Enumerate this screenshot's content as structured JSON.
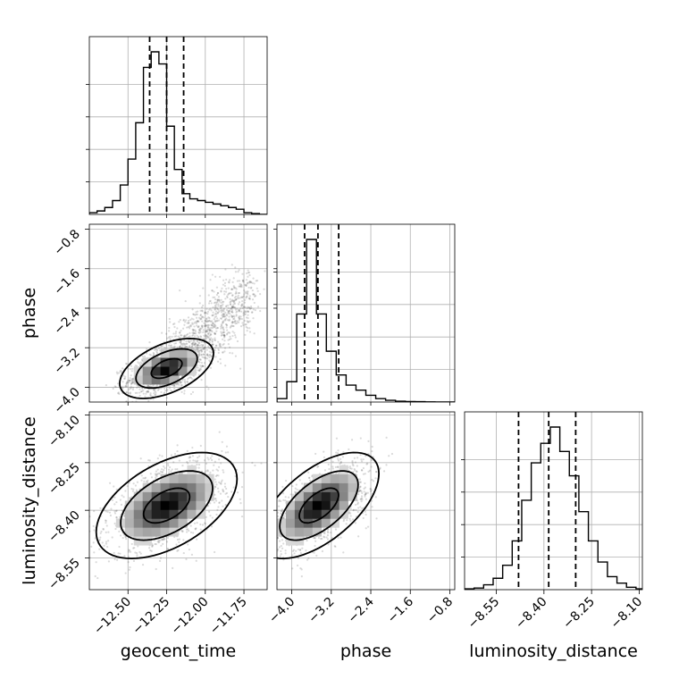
{
  "chart_data": {
    "type": "corner",
    "parameters": [
      "geocent_time",
      "phase",
      "luminosity_distance"
    ],
    "axis_ranges": {
      "geocent_time": [
        -12.75,
        -11.6
      ],
      "phase": [
        -4.3,
        -0.7
      ],
      "luminosity_distance": [
        -8.65,
        -8.09
      ]
    },
    "ticks": {
      "geocent_time": [
        -12.5,
        -12.25,
        -12.0,
        -11.75
      ],
      "phase": [
        -4.0,
        -3.2,
        -2.4,
        -1.6,
        -0.8
      ],
      "luminosity_distance": [
        -8.55,
        -8.4,
        -8.25,
        -8.1
      ]
    },
    "tick_labels": {
      "geocent_time": [
        "−12.50",
        "−12.25",
        "−12.00",
        "−11.75"
      ],
      "phase": [
        "−4.0",
        "−3.2",
        "−2.4",
        "−1.6",
        "−0.8"
      ],
      "luminosity_distance": [
        "−8.55",
        "−8.40",
        "−8.25",
        "−8.10"
      ]
    },
    "quantiles": {
      "geocent_time": [
        -12.36,
        -12.25,
        -12.14
      ],
      "phase": [
        -3.74,
        -3.47,
        -3.05
      ],
      "luminosity_distance": [
        -8.48,
        -8.385,
        -8.3
      ]
    },
    "histograms": {
      "geocent_time": {
        "edges": [
          -12.75,
          -12.7,
          -12.65,
          -12.6,
          -12.55,
          -12.5,
          -12.45,
          -12.4,
          -12.35,
          -12.3,
          -12.25,
          -12.2,
          -12.15,
          -12.1,
          -12.05,
          -12.0,
          -11.95,
          -11.9,
          -11.85,
          -11.8,
          -11.75,
          -11.7,
          -11.65,
          -11.6
        ],
        "counts": [
          0.01,
          0.02,
          0.04,
          0.08,
          0.17,
          0.32,
          0.53,
          0.85,
          0.94,
          0.87,
          0.51,
          0.26,
          0.12,
          0.09,
          0.08,
          0.07,
          0.06,
          0.05,
          0.04,
          0.03,
          0.01,
          0.005,
          0.0
        ]
      },
      "phase": {
        "edges": [
          -4.3,
          -4.1,
          -3.9,
          -3.7,
          -3.5,
          -3.3,
          -3.1,
          -2.9,
          -2.7,
          -2.5,
          -2.3,
          -2.1,
          -1.9,
          -1.7,
          -1.5,
          -1.3,
          -1.1,
          -0.9,
          -0.7
        ],
        "counts": [
          0.02,
          0.12,
          0.52,
          0.96,
          0.52,
          0.3,
          0.16,
          0.1,
          0.07,
          0.04,
          0.02,
          0.01,
          0.005,
          0.003,
          0.002,
          0.001,
          0.0,
          0.0
        ]
      },
      "luminosity_distance": {
        "edges": [
          -8.65,
          -8.62,
          -8.59,
          -8.56,
          -8.53,
          -8.5,
          -8.47,
          -8.44,
          -8.41,
          -8.38,
          -8.35,
          -8.32,
          -8.29,
          -8.26,
          -8.23,
          -8.2,
          -8.17,
          -8.14,
          -8.11,
          -8.09
        ],
        "counts": [
          0.005,
          0.01,
          0.03,
          0.07,
          0.15,
          0.3,
          0.55,
          0.78,
          0.9,
          1.0,
          0.85,
          0.7,
          0.48,
          0.3,
          0.17,
          0.08,
          0.04,
          0.015,
          0.005
        ]
      }
    },
    "density": {
      "geocent_time|phase": {
        "center": [
          -12.25,
          -3.62
        ],
        "sd": [
          0.1,
          0.2
        ],
        "corr": 0.5,
        "tail": {
          "x": [
            -12.25,
            -11.72
          ],
          "y": [
            -3.55,
            -2.1
          ],
          "spread": 0.32
        }
      },
      "geocent_time|luminosity_distance": {
        "center": [
          -12.25,
          -8.385
        ],
        "sd": [
          0.15,
          0.055
        ],
        "corr": 0.5
      },
      "phase|luminosity_distance": {
        "center": [
          -3.45,
          -8.385
        ],
        "sd": [
          0.4,
          0.055
        ],
        "corr": 0.6
      }
    },
    "contour_levels": [
      0.39,
      0.86,
      0.99
    ],
    "grid": true
  }
}
